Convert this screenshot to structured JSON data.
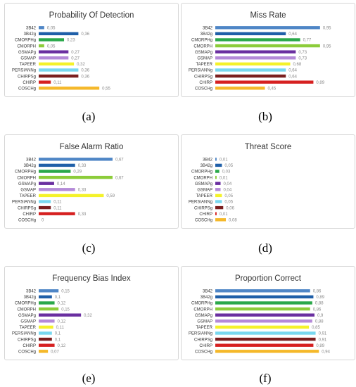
{
  "chart_data": [
    {
      "type": "bar",
      "orientation": "horizontal",
      "panel_label": "(a)",
      "title": "Probability Of Detection",
      "categories": [
        "3B42",
        "3B42g",
        "CMORPHg",
        "CMORPH",
        "GSMAPg",
        "GSMAP",
        "TAPEER",
        "PERSIANNg",
        "CHIRPSg",
        "CHIRP",
        "COSCHg"
      ],
      "values": [
        0.05,
        0.36,
        0.23,
        0.05,
        0.27,
        0.27,
        0.32,
        0.36,
        0.36,
        0.11,
        0.55
      ],
      "value_labels": [
        "0,05",
        "0,36",
        "0,23",
        "0,05",
        "0,27",
        "0,27",
        "0,32",
        "0,36",
        "0,36",
        "0,11",
        "0,55"
      ],
      "xlim": [
        0,
        1.2
      ],
      "xticks": [
        "0",
        "0,2",
        "0,4",
        "0,6",
        "0,8",
        "1",
        "1,2"
      ],
      "grid": false
    },
    {
      "type": "bar",
      "orientation": "horizontal",
      "panel_label": "(b)",
      "title": "Miss Rate",
      "categories": [
        "3B42",
        "3B42g",
        "CMORPHg",
        "CMORPH",
        "GSMAPg",
        "GSMAP",
        "TAPEER",
        "PERSIANNg",
        "CHIRPSg",
        "CHIRP",
        "COSCHg"
      ],
      "values": [
        0.95,
        0.64,
        0.77,
        0.95,
        0.73,
        0.73,
        0.68,
        0.64,
        0.64,
        0.89,
        0.45
      ],
      "value_labels": [
        "0,95",
        "0,64",
        "0,77",
        "0,95",
        "0,73",
        "0,73",
        "0,68",
        "0,64",
        "0,64",
        "0,89",
        "0,45"
      ],
      "xlim": [
        0,
        1.2
      ],
      "xticks": [
        "0",
        "0,2",
        "0,4",
        "0,6",
        "0,8",
        "1",
        "1,2"
      ],
      "grid": false
    },
    {
      "type": "bar",
      "orientation": "horizontal",
      "panel_label": "(c)",
      "title": "False Alarm Ratio",
      "categories": [
        "3B42",
        "3B42g",
        "CMORPHg",
        "CMORPH",
        "GSMAPg",
        "GSMAP",
        "TAPEER",
        "PERSIANNg",
        "CHIRPSg",
        "CHIRP",
        "COSCHg"
      ],
      "values": [
        0.67,
        0.33,
        0.29,
        0.67,
        0.14,
        0.33,
        0.59,
        0.11,
        0.11,
        0.33,
        0
      ],
      "value_labels": [
        "0,67",
        "0,33",
        "0,29",
        "0,67",
        "0,14",
        "0,33",
        "0,59",
        "0,11",
        "0,11",
        "0,33",
        "0"
      ],
      "xlim": [
        0,
        1.2
      ],
      "xticks": [
        "0",
        "0,2",
        "0,4",
        "0,6",
        "0,8",
        "1",
        "1,2"
      ],
      "grid": false
    },
    {
      "type": "bar",
      "orientation": "horizontal",
      "panel_label": "(d)",
      "title": "Threat Score",
      "categories": [
        "3B42",
        "3B42g",
        "CMORPHg",
        "CMORPH",
        "GSMAPg",
        "GSMAP",
        "TAPEER",
        "PERSIANNg",
        "CHIRPSg",
        "CHIRP",
        "COSCHg"
      ],
      "values": [
        0.01,
        0.05,
        0.03,
        0.01,
        0.04,
        0.04,
        0.05,
        0.05,
        0.06,
        0.01,
        0.08
      ],
      "value_labels": [
        "0,01",
        "0,05",
        "0,03",
        "0,01",
        "0,04",
        "0,04",
        "0,05",
        "0,05",
        "0,06",
        "0,01",
        "0,08"
      ],
      "xlim": [
        0,
        1
      ],
      "xticks": [
        "0",
        "0,2",
        "0,4",
        "0,6",
        "0,8",
        "1"
      ],
      "grid": false
    },
    {
      "type": "bar",
      "orientation": "horizontal",
      "panel_label": "(e)",
      "title": "Frequency Bias Index",
      "categories": [
        "3B42",
        "3B42g",
        "CMORPHg",
        "CMORPH",
        "GSMAPg",
        "GSMAP",
        "TAPEER",
        "PERSIANNg",
        "CHIRPSg",
        "CHIRP",
        "COSCHg"
      ],
      "values": [
        0.15,
        0.1,
        0.12,
        0.15,
        0.32,
        0.12,
        0.11,
        0.1,
        0.1,
        0.12,
        0.07
      ],
      "value_labels": [
        "0,15",
        "0,1",
        "0,12",
        "0,15",
        "0,32",
        "0,12",
        "0,11",
        "0,1",
        "0,1",
        "0,12",
        "0,07"
      ],
      "xlim": [
        0,
        1
      ],
      "xticks": [
        "0",
        "0,2",
        "0,4",
        "0,6",
        "0,8",
        "1"
      ],
      "grid": false
    },
    {
      "type": "bar",
      "orientation": "horizontal",
      "panel_label": "(f)",
      "title": "Proportion Correct",
      "categories": [
        "3B42",
        "3B42g",
        "CMORPHg",
        "CMORPH",
        "GSMAPg",
        "GSMAP",
        "TAPEER",
        "PERSIANNg",
        "CHIRPSg",
        "CHIRP",
        "COSCHg"
      ],
      "values": [
        0.86,
        0.89,
        0.88,
        0.86,
        0.9,
        0.88,
        0.85,
        0.91,
        0.91,
        0.89,
        0.94
      ],
      "value_labels": [
        "0,86",
        "0,89",
        "0,88",
        "0,86",
        "0,9",
        "0,88",
        "0,85",
        "0,91",
        "0,91",
        "0,89",
        "0,94"
      ],
      "xlim": [
        0,
        1.2
      ],
      "xticks": [
        "0",
        "0,2",
        "0,4",
        "0,6",
        "0,8",
        "1",
        "1,2"
      ],
      "grid": false
    }
  ],
  "series_colors": [
    "#4f86c6",
    "#1f5fa8",
    "#2aa84a",
    "#8ccc3a",
    "#6a2fa0",
    "#b48ad8",
    "#f4f22a",
    "#78d8f0",
    "#7a1f1f",
    "#d62020",
    "#f5b82a"
  ]
}
